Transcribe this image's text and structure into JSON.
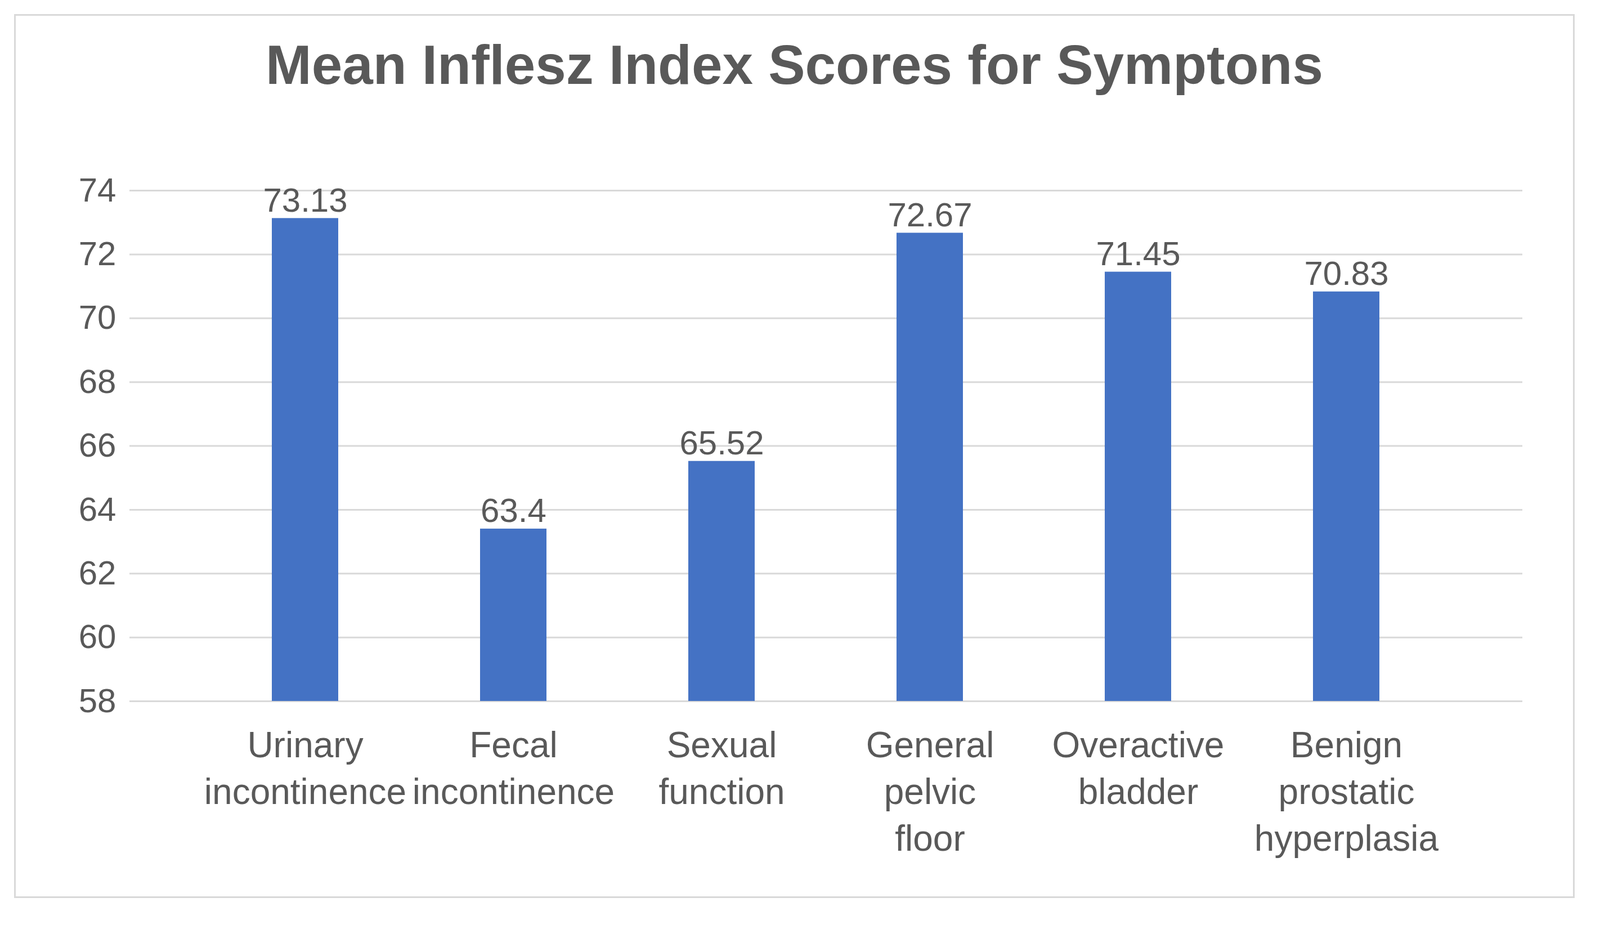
{
  "chart_data": {
    "type": "bar",
    "title": "Mean Inflesz Index Scores for Symptons",
    "categories": [
      "Urinary incontinence",
      "Fecal incontinence",
      "Sexual function",
      "General pelvic floor",
      "Overactive bladder",
      "Benign prostatic hyperplasia"
    ],
    "values": [
      73.13,
      63.4,
      65.52,
      72.67,
      71.45,
      70.83
    ],
    "color": "#4472c4",
    "ylim": [
      58,
      74
    ],
    "yticks": [
      58,
      60,
      62,
      64,
      66,
      68,
      70,
      72,
      74
    ],
    "grid": true,
    "data_labels": true
  }
}
